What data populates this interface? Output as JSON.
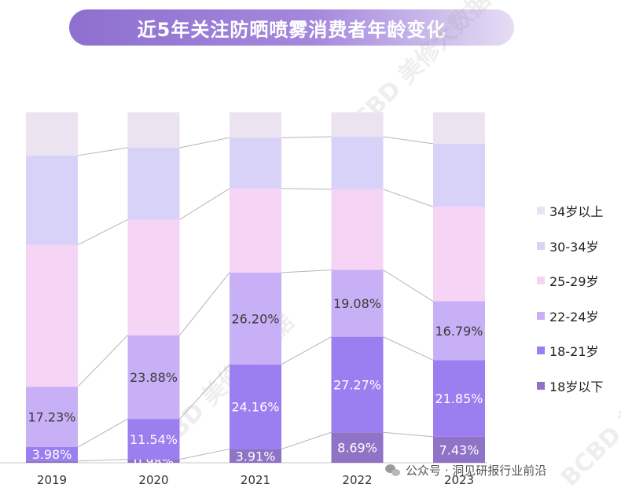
{
  "title": "近5年关注防晒喷雾消费者年龄变化",
  "footer": {
    "text": "公众号 · 洞见研报行业前沿"
  },
  "watermark": {
    "text": "BCBD 美修大数据"
  },
  "chart_data": {
    "type": "bar",
    "stacked": true,
    "normalized": true,
    "title": "近5年关注防晒喷雾消费者年龄变化",
    "categories": [
      "2019",
      "2020",
      "2021",
      "2022",
      "2023"
    ],
    "ylim": [
      0,
      100
    ],
    "series": [
      {
        "name": "18岁以下",
        "color": "#8e73c6",
        "values": [
          0.5,
          0.98,
          3.91,
          8.69,
          7.43
        ],
        "labels": [
          "",
          "0.98%",
          "3.91%",
          "8.69%",
          "7.43%"
        ]
      },
      {
        "name": "18-21岁",
        "color": "#9b7ef0",
        "values": [
          3.98,
          11.54,
          24.16,
          27.27,
          21.85
        ],
        "labels": [
          "3.98%",
          "11.54%",
          "24.16%",
          "27.27%",
          "21.85%"
        ]
      },
      {
        "name": "22-24岁",
        "color": "#c8b0f6",
        "values": [
          17.23,
          23.88,
          26.2,
          19.08,
          16.79
        ],
        "labels": [
          "17.23%",
          "23.88%",
          "26.20%",
          "19.08%",
          "16.79%"
        ]
      },
      {
        "name": "25-29岁",
        "color": "#f5d4f6",
        "values": [
          40.5,
          33.0,
          24.0,
          23.0,
          27.0
        ],
        "labels": [
          "",
          "",
          "",
          "",
          ""
        ]
      },
      {
        "name": "30-34岁",
        "color": "#d9d2f8",
        "values": [
          25.5,
          20.5,
          14.5,
          15.0,
          18.0
        ],
        "labels": [
          "",
          "",
          "",
          "",
          ""
        ]
      },
      {
        "name": "34岁以上",
        "color": "#ebe3f0",
        "values": [
          12.29,
          10.1,
          7.23,
          6.96,
          8.93
        ],
        "labels": [
          "",
          "",
          "",
          "",
          ""
        ]
      }
    ],
    "legend": [
      "34岁以上",
      "30-34岁",
      "25-29岁",
      "22-24岁",
      "18-21岁",
      "18岁以下"
    ],
    "legend_position": "right"
  }
}
